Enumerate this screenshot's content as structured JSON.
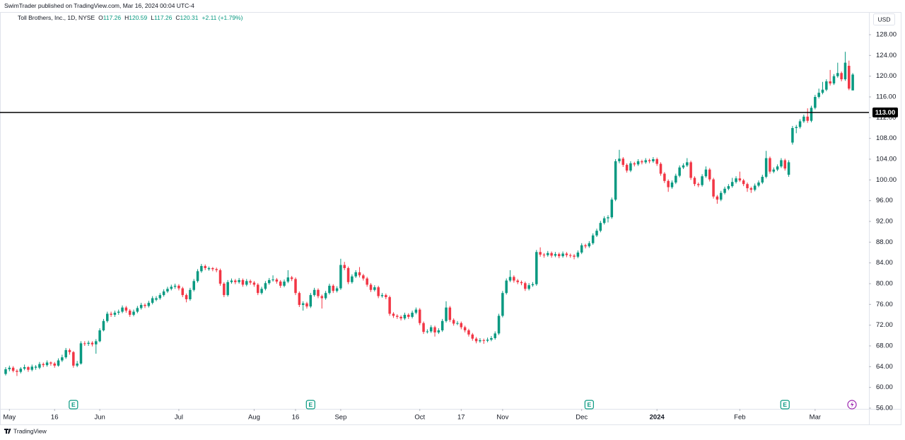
{
  "header": "SwimTrader published on TradingView.com, Mar 16, 2024 00:04 UTC-4",
  "footer": "TradingView",
  "chart_data": {
    "type": "candlestick",
    "legend": {
      "symbol": "Toll Brothers, Inc., 1D, NYSE",
      "fields": [
        "O",
        "H",
        "L",
        "C"
      ],
      "change": "+2.11 (+1.79%)"
    },
    "currency": "USD",
    "up_color": "#089981",
    "down_color": "#f23645",
    "grid": false,
    "ylim": [
      55.86,
      132.23
    ],
    "yticks": [
      {
        "value": 56,
        "label": "56.00"
      },
      {
        "value": 60,
        "label": "60.00"
      },
      {
        "value": 64,
        "label": "64.00"
      },
      {
        "value": 68,
        "label": "68.00"
      },
      {
        "value": 72,
        "label": "72.00"
      },
      {
        "value": 76,
        "label": "76.00"
      },
      {
        "value": 80,
        "label": "80.00"
      },
      {
        "value": 84,
        "label": "84.00"
      },
      {
        "value": 88,
        "label": "88.00"
      },
      {
        "value": 92,
        "label": "92.00"
      },
      {
        "value": 96,
        "label": "96.00"
      },
      {
        "value": 100,
        "label": "100.00"
      },
      {
        "value": 104,
        "label": "104.00"
      },
      {
        "value": 108,
        "label": "108.00"
      },
      {
        "value": 112,
        "label": "112.00"
      },
      {
        "value": 116,
        "label": "116.00"
      },
      {
        "value": 120,
        "label": "120.00"
      },
      {
        "value": 124,
        "label": "124.00"
      },
      {
        "value": 128,
        "label": "128.00"
      }
    ],
    "xlim": [
      -1.5,
      229.3
    ],
    "xticks": [
      {
        "value": 1,
        "label": "May"
      },
      {
        "value": 13,
        "label": "16"
      },
      {
        "value": 25,
        "label": "Jun"
      },
      {
        "value": 46,
        "label": "Jul"
      },
      {
        "value": 66,
        "label": "Aug"
      },
      {
        "value": 77,
        "label": "16"
      },
      {
        "value": 89,
        "label": "Sep"
      },
      {
        "value": 110,
        "label": "Oct"
      },
      {
        "value": 121,
        "label": "17"
      },
      {
        "value": 132,
        "label": "Nov"
      },
      {
        "value": 153,
        "label": "Dec"
      },
      {
        "value": 173,
        "label": "2024"
      },
      {
        "value": 195,
        "label": "Feb"
      },
      {
        "value": 215,
        "label": "Mar"
      }
    ],
    "hlines": [
      {
        "value": 113,
        "label": "113.00",
        "color": "#000000"
      }
    ],
    "events": [
      {
        "index": 18,
        "label": "E"
      },
      {
        "index": 81,
        "label": "E"
      },
      {
        "index": 155,
        "label": "E"
      },
      {
        "index": 207,
        "label": "E"
      }
    ],
    "ohlc": [
      [
        62.6,
        63.9,
        62.3,
        63.5
      ],
      [
        63.5,
        64.2,
        63.1,
        63.8
      ],
      [
        63.8,
        64.1,
        62.9,
        63.2
      ],
      [
        63.2,
        63.5,
        62.2,
        63.0
      ],
      [
        63.0,
        63.9,
        62.7,
        63.6
      ],
      [
        63.6,
        64.4,
        63.3,
        63.9
      ],
      [
        63.9,
        64.1,
        63.0,
        63.4
      ],
      [
        63.4,
        64.4,
        63.1,
        64.0
      ],
      [
        63.8,
        64.3,
        63.4,
        64.0
      ],
      [
        63.8,
        64.9,
        63.5,
        64.5
      ],
      [
        64.5,
        64.8,
        63.9,
        64.3
      ],
      [
        64.3,
        65.2,
        64.0,
        64.8
      ],
      [
        64.8,
        65.0,
        64.2,
        64.6
      ],
      [
        64.6,
        64.9,
        63.8,
        64.2
      ],
      [
        64.2,
        65.6,
        64.0,
        65.2
      ],
      [
        65.2,
        66.3,
        64.9,
        65.8
      ],
      [
        65.8,
        67.6,
        65.5,
        67.2
      ],
      [
        67.2,
        67.5,
        66.3,
        66.8
      ],
      [
        66.8,
        67.0,
        63.8,
        64.2
      ],
      [
        64.2,
        65.1,
        63.9,
        64.6
      ],
      [
        64.6,
        68.9,
        64.4,
        68.5
      ],
      [
        68.5,
        68.9,
        68.0,
        68.4
      ],
      [
        68.4,
        69.0,
        68.0,
        68.6
      ],
      [
        68.6,
        68.9,
        67.9,
        68.3
      ],
      [
        68.3,
        69.3,
        66.5,
        68.9
      ],
      [
        68.9,
        71.4,
        68.7,
        71.0
      ],
      [
        71.0,
        73.2,
        70.8,
        72.8
      ],
      [
        72.8,
        74.6,
        72.5,
        74.2
      ],
      [
        74.2,
        74.6,
        73.6,
        74.0
      ],
      [
        74.0,
        74.8,
        73.6,
        74.4
      ],
      [
        74.4,
        75.0,
        74.0,
        74.6
      ],
      [
        74.6,
        75.8,
        74.3,
        75.4
      ],
      [
        75.4,
        75.7,
        74.4,
        74.8
      ],
      [
        74.8,
        75.1,
        73.6,
        74.0
      ],
      [
        74.0,
        75.0,
        73.7,
        74.6
      ],
      [
        74.6,
        75.7,
        74.3,
        75.3
      ],
      [
        75.3,
        76.3,
        75.0,
        75.9
      ],
      [
        75.9,
        76.2,
        75.3,
        75.7
      ],
      [
        75.7,
        76.7,
        75.4,
        76.3
      ],
      [
        76.3,
        77.6,
        76.0,
        77.2
      ],
      [
        76.9,
        77.6,
        76.6,
        77.2
      ],
      [
        77.2,
        78.2,
        76.9,
        77.8
      ],
      [
        77.8,
        78.9,
        77.5,
        78.5
      ],
      [
        78.5,
        79.4,
        78.2,
        79.0
      ],
      [
        79.0,
        79.8,
        78.7,
        79.4
      ],
      [
        79.4,
        80.0,
        79.0,
        79.6
      ],
      [
        79.6,
        79.9,
        78.7,
        79.1
      ],
      [
        79.1,
        79.4,
        77.4,
        77.8
      ],
      [
        77.8,
        78.1,
        76.4,
        77.0
      ],
      [
        77.0,
        79.2,
        76.7,
        78.8
      ],
      [
        78.8,
        80.9,
        78.5,
        80.5
      ],
      [
        80.5,
        82.8,
        80.2,
        82.4
      ],
      [
        82.4,
        83.8,
        82.1,
        83.4
      ],
      [
        83.4,
        83.7,
        82.6,
        83.0
      ],
      [
        82.8,
        83.3,
        82.5,
        83.0
      ],
      [
        83.0,
        83.2,
        82.4,
        82.8
      ],
      [
        82.8,
        83.1,
        82.2,
        82.6
      ],
      [
        82.6,
        82.9,
        79.6,
        80.0
      ],
      [
        80.0,
        80.3,
        77.4,
        77.8
      ],
      [
        77.8,
        80.7,
        77.5,
        80.3
      ],
      [
        80.3,
        81.0,
        80.0,
        80.6
      ],
      [
        80.6,
        80.9,
        79.9,
        80.3
      ],
      [
        80.3,
        81.1,
        80.0,
        80.7
      ],
      [
        80.7,
        81.0,
        79.4,
        79.8
      ],
      [
        79.8,
        80.9,
        79.5,
        80.5
      ],
      [
        80.5,
        80.8,
        79.8,
        80.2
      ],
      [
        80.2,
        80.5,
        79.4,
        79.8
      ],
      [
        79.8,
        80.1,
        77.8,
        78.2
      ],
      [
        78.2,
        79.4,
        77.9,
        79.0
      ],
      [
        79.0,
        80.5,
        78.7,
        80.1
      ],
      [
        80.1,
        81.1,
        79.8,
        80.7
      ],
      [
        80.7,
        81.6,
        80.4,
        80.8
      ],
      [
        80.8,
        81.1,
        80.0,
        80.4
      ],
      [
        80.4,
        80.7,
        79.2,
        79.6
      ],
      [
        79.6,
        80.8,
        79.3,
        80.4
      ],
      [
        80.4,
        82.6,
        80.1,
        81.2
      ],
      [
        81.2,
        81.5,
        80.5,
        80.9
      ],
      [
        80.9,
        81.2,
        77.8,
        78.2
      ],
      [
        78.2,
        78.5,
        75.5,
        75.9
      ],
      [
        75.9,
        76.6,
        74.8,
        76.2
      ],
      [
        76.2,
        76.5,
        75.2,
        75.6
      ],
      [
        75.6,
        78.2,
        75.3,
        77.8
      ],
      [
        77.8,
        79.2,
        77.5,
        78.8
      ],
      [
        78.8,
        79.1,
        77.2,
        77.6
      ],
      [
        77.6,
        77.9,
        75.2,
        77.2
      ],
      [
        77.2,
        78.6,
        76.9,
        78.2
      ],
      [
        78.2,
        80.0,
        77.9,
        79.6
      ],
      [
        79.6,
        79.9,
        78.2,
        78.6
      ],
      [
        78.6,
        79.5,
        78.3,
        79.1
      ],
      [
        79.1,
        84.8,
        78.8,
        83.6
      ],
      [
        83.6,
        84.2,
        82.6,
        83.0
      ],
      [
        83.0,
        83.3,
        79.9,
        80.3
      ],
      [
        80.3,
        81.8,
        80.0,
        81.4
      ],
      [
        81.4,
        82.6,
        81.1,
        82.2
      ],
      [
        82.2,
        83.2,
        81.2,
        81.6
      ],
      [
        81.6,
        81.9,
        80.6,
        81.0
      ],
      [
        81.0,
        81.3,
        79.4,
        79.8
      ],
      [
        79.8,
        80.1,
        78.4,
        78.8
      ],
      [
        78.8,
        79.7,
        78.5,
        79.3
      ],
      [
        79.3,
        79.6,
        77.2,
        77.6
      ],
      [
        77.6,
        78.2,
        77.3,
        77.8
      ],
      [
        77.8,
        78.1,
        77.0,
        77.4
      ],
      [
        77.4,
        77.7,
        73.8,
        74.2
      ],
      [
        74.2,
        74.5,
        73.4,
        73.8
      ],
      [
        73.8,
        74.1,
        73.2,
        73.6
      ],
      [
        73.6,
        73.9,
        72.9,
        73.3
      ],
      [
        73.3,
        74.4,
        73.0,
        74.0
      ],
      [
        74.0,
        74.3,
        73.2,
        73.6
      ],
      [
        73.6,
        74.8,
        73.3,
        74.4
      ],
      [
        74.4,
        75.4,
        74.1,
        75.0
      ],
      [
        75.0,
        75.3,
        72.0,
        72.4
      ],
      [
        72.4,
        72.7,
        70.3,
        70.7
      ],
      [
        70.7,
        71.2,
        70.4,
        70.8
      ],
      [
        70.8,
        72.0,
        70.5,
        71.6
      ],
      [
        71.6,
        71.9,
        69.8,
        70.6
      ],
      [
        70.6,
        71.4,
        70.3,
        71.0
      ],
      [
        71.0,
        73.2,
        70.7,
        72.8
      ],
      [
        72.8,
        76.6,
        72.5,
        75.4
      ],
      [
        75.4,
        75.7,
        72.6,
        73.0
      ],
      [
        73.0,
        73.3,
        71.9,
        72.3
      ],
      [
        72.3,
        72.8,
        72.0,
        72.4
      ],
      [
        72.4,
        72.7,
        71.2,
        71.6
      ],
      [
        71.6,
        71.9,
        70.6,
        71.0
      ],
      [
        71.0,
        71.3,
        69.8,
        70.2
      ],
      [
        70.2,
        70.5,
        69.0,
        69.4
      ],
      [
        69.4,
        69.7,
        68.5,
        68.9
      ],
      [
        68.9,
        69.5,
        68.6,
        69.1
      ],
      [
        69.1,
        69.4,
        68.4,
        69.0
      ],
      [
        69.0,
        69.6,
        68.7,
        69.2
      ],
      [
        69.2,
        69.9,
        68.9,
        69.5
      ],
      [
        69.5,
        70.8,
        69.2,
        70.4
      ],
      [
        70.4,
        74.2,
        70.1,
        73.8
      ],
      [
        73.8,
        78.6,
        73.5,
        78.2
      ],
      [
        78.2,
        81.0,
        77.9,
        80.6
      ],
      [
        80.6,
        82.6,
        80.3,
        81.3
      ],
      [
        81.3,
        81.6,
        80.2,
        80.6
      ],
      [
        80.6,
        80.9,
        79.9,
        80.3
      ],
      [
        80.3,
        80.6,
        79.7,
        80.1
      ],
      [
        80.1,
        80.4,
        78.6,
        79.0
      ],
      [
        79.0,
        80.1,
        78.7,
        79.7
      ],
      [
        79.7,
        80.3,
        79.4,
        79.9
      ],
      [
        79.9,
        86.5,
        79.6,
        86.1
      ],
      [
        86.1,
        87.0,
        85.2,
        85.6
      ],
      [
        85.6,
        85.9,
        85.0,
        85.5
      ],
      [
        85.5,
        86.3,
        85.2,
        85.9
      ],
      [
        85.9,
        86.2,
        85.0,
        85.4
      ],
      [
        85.4,
        86.1,
        85.1,
        85.7
      ],
      [
        85.7,
        86.0,
        84.9,
        85.3
      ],
      [
        85.3,
        86.2,
        85.0,
        85.8
      ],
      [
        85.8,
        86.1,
        85.1,
        85.5
      ],
      [
        85.5,
        85.8,
        85.0,
        85.4
      ],
      [
        85.4,
        85.7,
        84.7,
        85.2
      ],
      [
        85.2,
        86.4,
        84.9,
        86.0
      ],
      [
        86.0,
        87.8,
        85.7,
        87.4
      ],
      [
        87.4,
        87.7,
        86.8,
        87.2
      ],
      [
        87.2,
        88.2,
        86.9,
        87.8
      ],
      [
        87.8,
        89.7,
        87.5,
        89.3
      ],
      [
        89.3,
        90.6,
        89.0,
        90.2
      ],
      [
        90.2,
        92.1,
        89.9,
        91.7
      ],
      [
        91.7,
        93.0,
        91.4,
        92.6
      ],
      [
        92.6,
        93.2,
        91.8,
        92.8
      ],
      [
        92.8,
        96.6,
        92.5,
        96.2
      ],
      [
        96.2,
        104.0,
        95.9,
        103.6
      ],
      [
        103.6,
        105.8,
        103.2,
        104.1
      ],
      [
        104.1,
        104.4,
        102.5,
        102.9
      ],
      [
        102.9,
        103.2,
        101.4,
        101.8
      ],
      [
        101.8,
        103.6,
        101.5,
        103.2
      ],
      [
        103.2,
        103.5,
        102.6,
        103.0
      ],
      [
        103.0,
        104.0,
        102.7,
        103.6
      ],
      [
        103.6,
        103.9,
        103.0,
        103.4
      ],
      [
        103.4,
        104.2,
        103.1,
        103.8
      ],
      [
        103.8,
        104.1,
        103.2,
        103.6
      ],
      [
        103.6,
        104.4,
        103.3,
        104.0
      ],
      [
        104.0,
        104.3,
        102.7,
        103.1
      ],
      [
        103.1,
        103.4,
        100.8,
        101.2
      ],
      [
        101.2,
        101.5,
        99.4,
        99.8
      ],
      [
        99.8,
        100.1,
        97.7,
        98.6
      ],
      [
        98.6,
        99.9,
        98.3,
        99.5
      ],
      [
        99.5,
        101.2,
        99.2,
        100.8
      ],
      [
        100.8,
        102.8,
        100.5,
        102.4
      ],
      [
        102.4,
        103.2,
        102.1,
        102.8
      ],
      [
        102.8,
        104.2,
        102.5,
        103.4
      ],
      [
        103.4,
        103.7,
        100.0,
        100.4
      ],
      [
        100.4,
        100.7,
        98.8,
        99.2
      ],
      [
        99.2,
        99.5,
        98.6,
        99.0
      ],
      [
        99.0,
        101.1,
        98.7,
        100.7
      ],
      [
        100.7,
        102.6,
        100.4,
        102.0
      ],
      [
        102.0,
        102.3,
        99.7,
        100.1
      ],
      [
        100.1,
        100.4,
        96.4,
        96.8
      ],
      [
        96.8,
        97.1,
        95.4,
        96.2
      ],
      [
        96.2,
        97.9,
        95.9,
        97.5
      ],
      [
        97.5,
        98.7,
        97.2,
        98.3
      ],
      [
        98.3,
        99.2,
        98.0,
        98.8
      ],
      [
        98.8,
        100.4,
        98.5,
        99.6
      ],
      [
        99.6,
        100.7,
        99.3,
        100.3
      ],
      [
        100.3,
        101.6,
        99.6,
        99.9
      ],
      [
        99.9,
        100.2,
        98.8,
        99.2
      ],
      [
        99.2,
        99.5,
        97.7,
        98.4
      ],
      [
        98.4,
        98.7,
        97.5,
        98.1
      ],
      [
        98.1,
        99.3,
        97.8,
        98.9
      ],
      [
        98.9,
        99.9,
        98.6,
        99.5
      ],
      [
        99.5,
        101.0,
        99.2,
        100.6
      ],
      [
        100.6,
        105.6,
        100.3,
        104.2
      ],
      [
        104.2,
        104.5,
        101.2,
        101.6
      ],
      [
        101.6,
        102.4,
        101.3,
        102.0
      ],
      [
        102.0,
        103.0,
        101.7,
        102.6
      ],
      [
        102.6,
        104.2,
        102.3,
        103.8
      ],
      [
        103.8,
        104.1,
        101.8,
        102.2
      ],
      [
        101.0,
        103.8,
        100.6,
        103.4
      ],
      [
        107.2,
        110.4,
        106.8,
        110.0
      ],
      [
        110.0,
        110.6,
        109.0,
        110.2
      ],
      [
        110.2,
        111.7,
        109.9,
        111.3
      ],
      [
        111.3,
        112.6,
        111.0,
        112.2
      ],
      [
        112.2,
        113.8,
        111.0,
        111.4
      ],
      [
        111.4,
        114.3,
        111.1,
        113.9
      ],
      [
        113.9,
        116.4,
        113.6,
        116.0
      ],
      [
        116.0,
        117.6,
        115.7,
        116.8
      ],
      [
        116.8,
        118.9,
        116.5,
        117.4
      ],
      [
        117.4,
        119.4,
        117.1,
        119.0
      ],
      [
        119.0,
        121.2,
        118.2,
        118.6
      ],
      [
        118.6,
        120.4,
        118.3,
        120.0
      ],
      [
        120.0,
        122.6,
        119.7,
        120.6
      ],
      [
        120.6,
        120.9,
        119.0,
        119.4
      ],
      [
        119.4,
        124.7,
        119.1,
        122.6
      ],
      [
        122.0,
        123.0,
        117.3,
        117.6
      ],
      [
        117.26,
        120.59,
        117.26,
        120.31
      ]
    ]
  }
}
